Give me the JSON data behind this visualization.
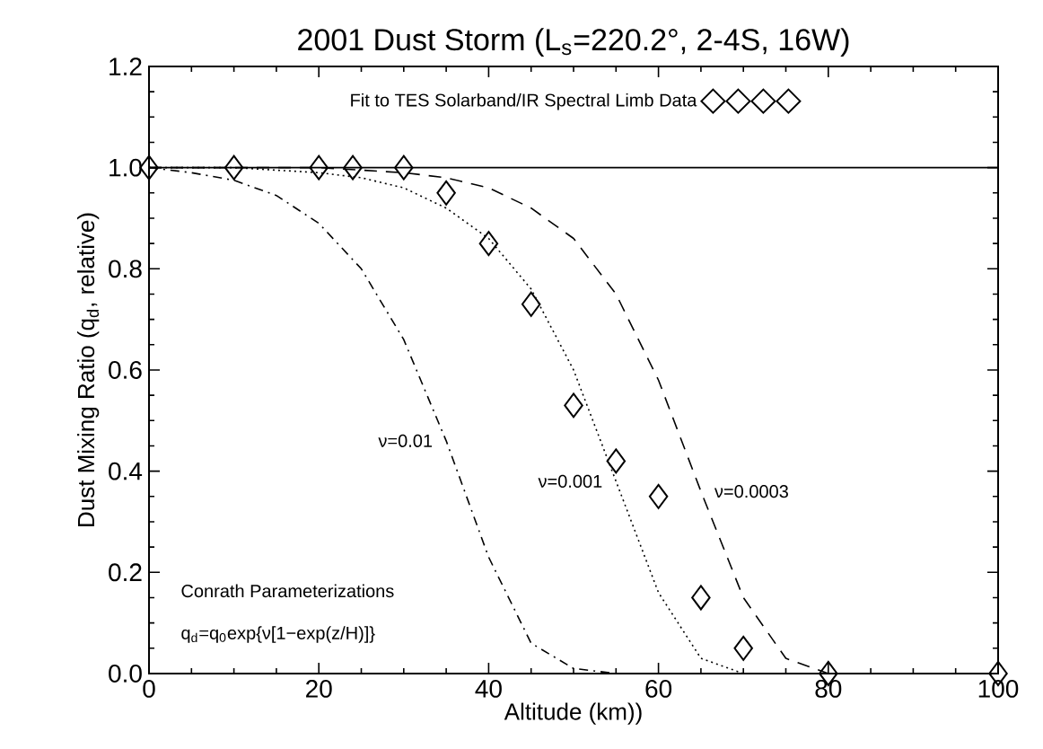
{
  "chart_data": {
    "type": "line",
    "title": "2001 Dust Storm (L$_{s}$=220.2°, 2-4S, 16W)",
    "xlabel": "Altitude (km))",
    "ylabel": "Dust Mixing Ratio (q$_{d}$, relative)",
    "xlim": [
      0,
      100
    ],
    "ylim": [
      0,
      1.2
    ],
    "xticks": [
      0,
      20,
      40,
      60,
      80,
      100
    ],
    "yticks": [
      {
        "value": 0,
        "label": "0.0"
      },
      {
        "value": 0.2,
        "label": "0.2"
      },
      {
        "value": 0.4,
        "label": "0.4"
      },
      {
        "value": 0.6,
        "label": "0.6"
      },
      {
        "value": 0.8,
        "label": "0.8"
      },
      {
        "value": 1.0,
        "label": "1.0"
      },
      {
        "value": 1.2,
        "label": "1.2"
      }
    ],
    "grid": false,
    "legend": "top",
    "ref_lines": [
      {
        "axis": "y",
        "value": 1.0,
        "color": "#000000"
      }
    ],
    "annotations": [
      "Conrath Parameterizations",
      "q$_{d}$=q$_{0}$exp{ν[1−exp(z/H)]}"
    ],
    "series": [
      {
        "name": "Fit to TES Solarband/IR Spectral Limb Data",
        "type": "scatter",
        "marker": "diamond",
        "color": "#000000",
        "x": [
          0,
          10,
          20,
          24,
          30,
          35,
          40,
          45,
          50,
          55,
          60,
          65,
          70,
          80,
          100
        ],
        "values": [
          1.0,
          1.0,
          1.0,
          1.0,
          1.0,
          0.95,
          0.85,
          0.73,
          0.53,
          0.42,
          0.35,
          0.15,
          0.05,
          0.0,
          0.0
        ]
      },
      {
        "name": "ν=0.01",
        "line_style": "dashdot",
        "color": "#000000",
        "x": [
          0,
          5,
          10,
          15,
          20,
          25,
          30,
          35,
          40,
          45,
          50,
          55,
          60
        ],
        "values": [
          1.0,
          0.99,
          0.975,
          0.945,
          0.89,
          0.8,
          0.66,
          0.46,
          0.23,
          0.06,
          0.01,
          0.0,
          0.0
        ]
      },
      {
        "name": "ν=0.001",
        "line_style": "dotted",
        "color": "#000000",
        "x": [
          0,
          10,
          20,
          25,
          30,
          35,
          40,
          45,
          50,
          55,
          60,
          65,
          70,
          75
        ],
        "values": [
          1.0,
          1.0,
          0.99,
          0.98,
          0.96,
          0.92,
          0.86,
          0.76,
          0.6,
          0.38,
          0.16,
          0.03,
          0.0,
          0.0
        ]
      },
      {
        "name": "ν=0.0003",
        "line_style": "dashed",
        "color": "#000000",
        "x": [
          0,
          20,
          30,
          35,
          40,
          45,
          50,
          55,
          60,
          65,
          70,
          75,
          80
        ],
        "values": [
          1.0,
          1.0,
          0.99,
          0.98,
          0.96,
          0.92,
          0.86,
          0.75,
          0.58,
          0.36,
          0.15,
          0.03,
          0.0
        ]
      }
    ]
  }
}
